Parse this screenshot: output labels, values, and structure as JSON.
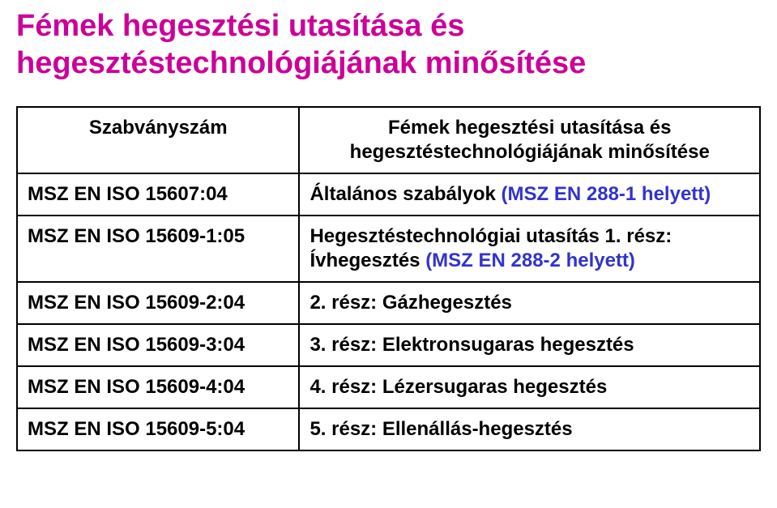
{
  "colors": {
    "title": "#cc0099",
    "text": "#000000",
    "highlight": "#3333cc",
    "border": "#000000",
    "background": "#ffffff"
  },
  "typography": {
    "title_fontsize": 38,
    "body_fontsize": 24,
    "font_family": "Arial, sans-serif"
  },
  "title_line1": "Fémek hegesztési utasítása és",
  "title_line2": "hegesztéstechnológiájának minősítése",
  "table": {
    "header_left": "Szabványszám",
    "header_right_line1": "Fémek hegesztési utasítása és",
    "header_right_line2": "hegesztéstechnológiájának minősítése",
    "rows": [
      {
        "left": "MSZ EN ISO 15607:04",
        "right_prefix": "Általános szabályok ",
        "right_blue": "(MSZ EN 288-1 helyett)",
        "right_suffix": "",
        "highlight": true
      },
      {
        "left": "MSZ EN ISO 15609-1:05",
        "right_prefix": "Hegesztéstechnológiai utasítás 1. rész: Ívhegesztés ",
        "right_blue": "(MSZ EN 288-2 helyett)",
        "right_suffix": "",
        "highlight": true
      },
      {
        "left": "MSZ EN ISO 15609-2:04",
        "right_prefix": "2. rész: Gázhegesztés",
        "right_blue": "",
        "right_suffix": "",
        "highlight": false
      },
      {
        "left": "MSZ EN ISO 15609-3:04",
        "right_prefix": "3. rész: Elektronsugaras hegesztés",
        "right_blue": "",
        "right_suffix": "",
        "highlight": false
      },
      {
        "left": "MSZ EN ISO 15609-4:04",
        "right_prefix": "4. rész: Lézersugaras hegesztés",
        "right_blue": "",
        "right_suffix": "",
        "highlight": false
      },
      {
        "left": "MSZ EN ISO 15609-5:04",
        "right_prefix": "5. rész: Ellenállás-hegesztés",
        "right_blue": "",
        "right_suffix": "",
        "highlight": false
      }
    ]
  }
}
